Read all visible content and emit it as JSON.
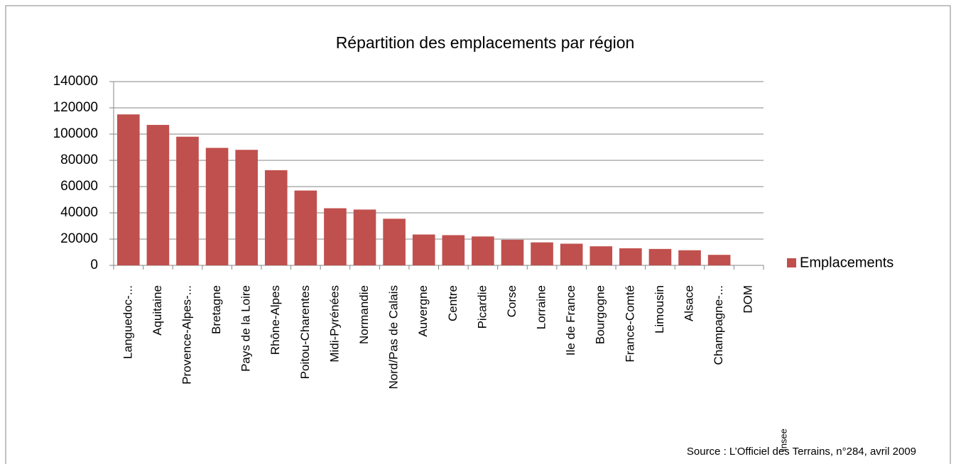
{
  "chart_data": {
    "type": "bar",
    "title": "Répartition des emplacements par région",
    "categories": [
      "Languedoc-...",
      "Aquitaine",
      "Provence-Alpes-...",
      "Bretagne",
      "Pays de la Loire",
      "Rhône-Alpes",
      "Poitou-Charentes",
      "Midi-Pyrénées",
      "Normandie",
      "Nord/Pas de Calais",
      "Auvergne",
      "Centre",
      "Picardie",
      "Corse",
      "Lorraine",
      "Ile de France",
      "Bourgogne",
      "France-Comté",
      "Limousin",
      "Alsace",
      "Champagne-...",
      "DOM"
    ],
    "series": [
      {
        "name": "Emplacements",
        "color": "#c0504d",
        "values": [
          115000,
          107000,
          98000,
          89500,
          88000,
          72500,
          57000,
          43500,
          42500,
          35500,
          23500,
          23000,
          22000,
          19500,
          17500,
          16500,
          14500,
          13000,
          12500,
          11500,
          8000,
          0
        ]
      }
    ],
    "ylim": [
      0,
      140000
    ],
    "yticks": [
      0,
      20000,
      40000,
      60000,
      80000,
      100000,
      120000,
      140000
    ],
    "grid": true,
    "legend": "right",
    "source": "Source : L’Officiel des Terrains, n°284, avril 2009",
    "annotation": "Insee"
  }
}
